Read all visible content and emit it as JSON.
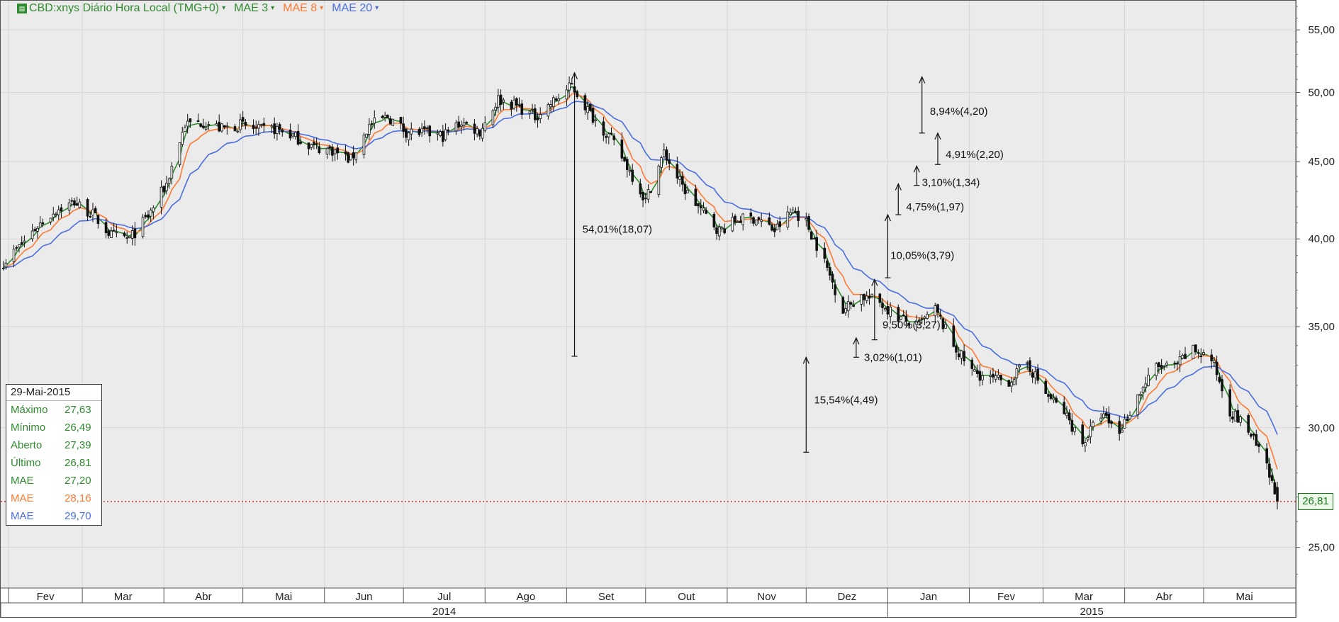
{
  "header": {
    "symbol": "CBD:xnys Diário Hora Local (TMG+0)",
    "mae3_label": "MAE 3",
    "mae8_label": "MAE 8",
    "mae20_label": "MAE 20",
    "icon": "chart-icon"
  },
  "colors": {
    "background": "#ebebeb",
    "grid": "#d6d6d6",
    "candle": "#111111",
    "mae3": "#2e8b2e",
    "mae8": "#ff7a33",
    "mae20": "#4a6ee0",
    "last_line": "#cc2222"
  },
  "legend": {
    "date": "29-Mai-2015",
    "rows": [
      {
        "label": "Máximo",
        "value": "27,63",
        "color": "#2e8b2e"
      },
      {
        "label": "Mínimo",
        "value": "26,49",
        "color": "#2e8b2e"
      },
      {
        "label": "Aberto",
        "value": "27,39",
        "color": "#2e8b2e"
      },
      {
        "label": "Último",
        "value": "26,81",
        "color": "#2e8b2e"
      },
      {
        "label": "MAE",
        "value": "27,20",
        "color": "#2e8b2e"
      },
      {
        "label": "MAE",
        "value": "28,16",
        "color": "#ff7a33"
      },
      {
        "label": "MAE",
        "value": "29,70",
        "color": "#4a6ee0"
      }
    ]
  },
  "last_value_label": "26,81",
  "chart_data": {
    "type": "line",
    "title": "",
    "xlabel": "",
    "ylabel": "",
    "y_scale": "log",
    "ylim": [
      23.5,
      57.5
    ],
    "y_ticks": [
      25,
      30,
      35,
      40,
      45,
      50,
      55
    ],
    "y_tick_labels": [
      "25,00",
      "30,00",
      "35,00",
      "40,00",
      "45,00",
      "50,00",
      "55,00"
    ],
    "xlim": [
      "2014-01-29",
      "2015-06-05"
    ],
    "month_ticks": [
      {
        "label": "Fev",
        "start": "2014-02-01",
        "end": "2014-03-01"
      },
      {
        "label": "Mar",
        "start": "2014-03-01",
        "end": "2014-04-01"
      },
      {
        "label": "Abr",
        "start": "2014-04-01",
        "end": "2014-05-01"
      },
      {
        "label": "Mai",
        "start": "2014-05-01",
        "end": "2014-06-01"
      },
      {
        "label": "Jun",
        "start": "2014-06-01",
        "end": "2014-07-01"
      },
      {
        "label": "Jul",
        "start": "2014-07-01",
        "end": "2014-08-01"
      },
      {
        "label": "Ago",
        "start": "2014-08-01",
        "end": "2014-09-01"
      },
      {
        "label": "Set",
        "start": "2014-09-01",
        "end": "2014-10-01"
      },
      {
        "label": "Out",
        "start": "2014-10-01",
        "end": "2014-11-01"
      },
      {
        "label": "Nov",
        "start": "2014-11-01",
        "end": "2014-12-01"
      },
      {
        "label": "Dez",
        "start": "2014-12-01",
        "end": "2015-01-01"
      },
      {
        "label": "Jan",
        "start": "2015-01-01",
        "end": "2015-02-01"
      },
      {
        "label": "Fev",
        "start": "2015-02-01",
        "end": "2015-03-01"
      },
      {
        "label": "Mar",
        "start": "2015-03-01",
        "end": "2015-04-01"
      },
      {
        "label": "Abr",
        "start": "2015-04-01",
        "end": "2015-05-01"
      },
      {
        "label": "Mai",
        "start": "2015-05-01",
        "end": "2015-06-01"
      }
    ],
    "year_ticks": [
      {
        "label": "2014",
        "start": "2014-01-29",
        "end": "2015-01-01"
      },
      {
        "label": "2015",
        "start": "2015-01-01",
        "end": "2015-06-05"
      }
    ],
    "close_anchors": [
      [
        "2014-01-30",
        38.6
      ],
      [
        "2014-02-05",
        39.5
      ],
      [
        "2014-02-12",
        40.8
      ],
      [
        "2014-02-19",
        41.8
      ],
      [
        "2014-02-26",
        42.3
      ],
      [
        "2014-03-05",
        41.5
      ],
      [
        "2014-03-12",
        40.2
      ],
      [
        "2014-03-19",
        40.0
      ],
      [
        "2014-03-26",
        41.4
      ],
      [
        "2014-04-02",
        43.5
      ],
      [
        "2014-04-09",
        47.6
      ],
      [
        "2014-04-16",
        47.8
      ],
      [
        "2014-04-23",
        47.3
      ],
      [
        "2014-04-30",
        47.6
      ],
      [
        "2014-05-07",
        47.2
      ],
      [
        "2014-05-14",
        47.3
      ],
      [
        "2014-05-21",
        46.7
      ],
      [
        "2014-05-28",
        46.0
      ],
      [
        "2014-06-04",
        45.8
      ],
      [
        "2014-06-11",
        45.1
      ],
      [
        "2014-06-18",
        47.5
      ],
      [
        "2014-06-25",
        48.2
      ],
      [
        "2014-07-02",
        47.1
      ],
      [
        "2014-07-09",
        47.0
      ],
      [
        "2014-07-16",
        46.8
      ],
      [
        "2014-07-23",
        47.8
      ],
      [
        "2014-07-30",
        47.1
      ],
      [
        "2014-08-06",
        49.5
      ],
      [
        "2014-08-13",
        49.0
      ],
      [
        "2014-08-20",
        48.2
      ],
      [
        "2014-08-27",
        49.3
      ],
      [
        "2014-09-03",
        50.5
      ],
      [
        "2014-09-10",
        48.4
      ],
      [
        "2014-09-17",
        46.8
      ],
      [
        "2014-09-24",
        44.7
      ],
      [
        "2014-10-01",
        42.4
      ],
      [
        "2014-10-08",
        45.6
      ],
      [
        "2014-10-15",
        43.3
      ],
      [
        "2014-10-22",
        41.8
      ],
      [
        "2014-10-29",
        40.5
      ],
      [
        "2014-11-05",
        41.2
      ],
      [
        "2014-11-12",
        41.3
      ],
      [
        "2014-11-19",
        40.5
      ],
      [
        "2014-11-26",
        41.8
      ],
      [
        "2014-12-01",
        41.0
      ],
      [
        "2014-12-08",
        38.6
      ],
      [
        "2014-12-15",
        35.9
      ],
      [
        "2014-12-22",
        36.7
      ],
      [
        "2014-12-29",
        36.3
      ],
      [
        "2015-01-05",
        35.5
      ],
      [
        "2015-01-12",
        35.0
      ],
      [
        "2015-01-19",
        35.9
      ],
      [
        "2015-01-26",
        34.0
      ],
      [
        "2015-02-02",
        32.7
      ],
      [
        "2015-02-09",
        32.3
      ],
      [
        "2015-02-16",
        32.2
      ],
      [
        "2015-02-23",
        33.1
      ],
      [
        "2015-03-02",
        31.6
      ],
      [
        "2015-03-09",
        30.7
      ],
      [
        "2015-03-16",
        29.3
      ],
      [
        "2015-03-23",
        30.6
      ],
      [
        "2015-03-30",
        29.8
      ],
      [
        "2015-04-06",
        31.5
      ],
      [
        "2015-04-13",
        32.9
      ],
      [
        "2015-04-20",
        32.9
      ],
      [
        "2015-04-27",
        33.8
      ],
      [
        "2015-05-04",
        33.3
      ],
      [
        "2015-05-11",
        30.8
      ],
      [
        "2015-05-18",
        29.9
      ],
      [
        "2015-05-25",
        28.2
      ],
      [
        "2015-05-29",
        26.81
      ]
    ],
    "series": [
      {
        "name": "MAE 3",
        "period": 3,
        "color": "#2e8b2e",
        "last_value": 27.2
      },
      {
        "name": "MAE 8",
        "period": 8,
        "color": "#ff7a33",
        "last_value": 28.16
      },
      {
        "name": "MAE 20",
        "period": 20,
        "color": "#4a6ee0",
        "last_value": 29.7
      }
    ],
    "last": {
      "date": "2015-05-29",
      "high": 27.63,
      "low": 26.49,
      "open": 27.39,
      "close": 26.81
    },
    "annotations": [
      {
        "label": "54,01%(18,07)",
        "date": "2014-09-04",
        "from": 33.45,
        "to": 51.52,
        "text_date": "2014-09-07",
        "text_value": 40.6
      },
      {
        "label": "15,54%(4,49)",
        "date": "2014-12-01",
        "from": 28.9,
        "to": 33.4,
        "text_date": "2014-12-04",
        "text_value": 31.3
      },
      {
        "label": "3,02%(1,01)",
        "date": "2014-12-20",
        "from": 33.4,
        "to": 34.4,
        "text_date": "2014-12-23",
        "text_value": 33.4
      },
      {
        "label": "9,50%(3,27)",
        "date": "2014-12-27",
        "from": 34.3,
        "to": 37.6,
        "text_date": "2014-12-30",
        "text_value": 35.1
      },
      {
        "label": "10,05%(3,79)",
        "date": "2015-01-01",
        "from": 37.7,
        "to": 41.5,
        "text_date": "2015-01-02",
        "text_value": 39.0
      },
      {
        "label": "4,75%(1,97)",
        "date": "2015-01-05",
        "from": 41.5,
        "to": 43.5,
        "text_date": "2015-01-08",
        "text_value": 42.0
      },
      {
        "label": "3,10%(1,34)",
        "date": "2015-01-12",
        "from": 43.4,
        "to": 44.7,
        "text_date": "2015-01-14",
        "text_value": 43.6
      },
      {
        "label": "4,91%(2,20)",
        "date": "2015-01-20",
        "from": 44.8,
        "to": 47.0,
        "text_date": "2015-01-23",
        "text_value": 45.5
      },
      {
        "label": "8,94%(4,20)",
        "date": "2015-01-14",
        "from": 47.0,
        "to": 51.2,
        "text_date": "2015-01-17",
        "text_value": 48.6
      }
    ]
  }
}
